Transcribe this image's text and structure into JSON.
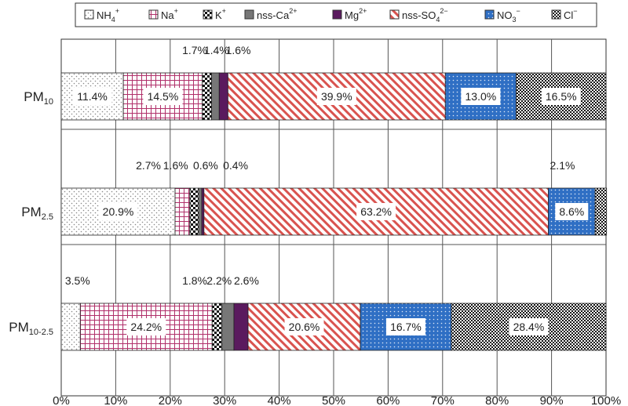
{
  "chart_data": {
    "type": "bar",
    "orientation": "horizontal",
    "stacked": true,
    "categories": [
      {
        "main": "PM",
        "sub": "10"
      },
      {
        "main": "PM",
        "sub": "2.5"
      },
      {
        "main": "PM",
        "sub": "10-2.5"
      }
    ],
    "series": [
      {
        "key": "nh4",
        "name": {
          "base": "NH",
          "sub": "4",
          "sup": "+"
        },
        "pattern": "dots",
        "color": "#888888",
        "values": [
          11.4,
          20.9,
          3.5
        ]
      },
      {
        "key": "na",
        "name": {
          "base": "Na",
          "sub": "",
          "sup": "+"
        },
        "pattern": "grid",
        "color": "#b0306a",
        "values": [
          14.5,
          2.7,
          24.2
        ]
      },
      {
        "key": "k",
        "name": {
          "base": "K",
          "sub": "",
          "sup": "+"
        },
        "pattern": "checker",
        "color": "#111111",
        "values": [
          1.7,
          1.6,
          1.8
        ]
      },
      {
        "key": "ca",
        "name": {
          "base": "nss-Ca",
          "sub": "",
          "sup": "2+"
        },
        "pattern": "solid",
        "color": "#777777",
        "values": [
          1.4,
          0.6,
          2.2
        ]
      },
      {
        "key": "mg",
        "name": {
          "base": "Mg",
          "sub": "",
          "sup": "2+"
        },
        "pattern": "solid",
        "color": "#5a1a5e",
        "values": [
          1.6,
          0.4,
          2.6
        ]
      },
      {
        "key": "so4",
        "name": {
          "base": "nss-SO",
          "sub": "4",
          "sup": "2−"
        },
        "pattern": "diag",
        "color": "#d9534f",
        "values": [
          39.9,
          63.2,
          20.6
        ]
      },
      {
        "key": "no3",
        "name": {
          "base": "NO",
          "sub": "3",
          "sup": "−"
        },
        "pattern": "bluedots",
        "color": "#2f6fc4",
        "values": [
          13.0,
          8.6,
          16.7
        ]
      },
      {
        "key": "cl",
        "name": {
          "base": "Cl",
          "sub": "",
          "sup": "−"
        },
        "pattern": "dense-check",
        "color": "#111111",
        "values": [
          16.5,
          2.1,
          28.4
        ]
      }
    ],
    "labels_inside": [
      [
        {
          "series": "nh4",
          "text": "11.4%"
        },
        {
          "series": "na",
          "text": "14.5%"
        },
        {
          "series": "so4",
          "text": "39.9%"
        },
        {
          "series": "no3",
          "text": "13.0%"
        },
        {
          "series": "cl",
          "text": "16.5%"
        }
      ],
      [
        {
          "series": "nh4",
          "text": "20.9%"
        },
        {
          "series": "so4",
          "text": "63.2%"
        },
        {
          "series": "no3",
          "text": "8.6%"
        }
      ],
      [
        {
          "series": "na",
          "text": "24.2%"
        },
        {
          "series": "so4",
          "text": "20.6%"
        },
        {
          "series": "no3",
          "text": "16.7%"
        },
        {
          "series": "cl",
          "text": "28.4%"
        }
      ]
    ],
    "labels_above": [
      [
        {
          "text": "1.7%",
          "at": 24.5
        },
        {
          "text": "1.4%",
          "at": 28.5
        },
        {
          "text": "1.6%",
          "at": 32.5
        }
      ],
      [
        {
          "text": "2.7%",
          "at": 16.0
        },
        {
          "text": "1.6%",
          "at": 21.0
        },
        {
          "text": "0.6%",
          "at": 26.5
        },
        {
          "text": "0.4%",
          "at": 32.0
        },
        {
          "text": "2.1%",
          "at": 92.0
        }
      ],
      [
        {
          "text": "3.5%",
          "at": 3.0
        },
        {
          "text": "1.8%",
          "at": 24.5
        },
        {
          "text": "2.2%",
          "at": 29.0
        },
        {
          "text": "2.6%",
          "at": 34.0
        }
      ]
    ],
    "x_ticks": [
      "0%",
      "10%",
      "20%",
      "30%",
      "40%",
      "50%",
      "60%",
      "70%",
      "80%",
      "90%",
      "100%"
    ],
    "xlim": [
      0,
      100
    ],
    "grid": true,
    "legend_position": "top"
  }
}
